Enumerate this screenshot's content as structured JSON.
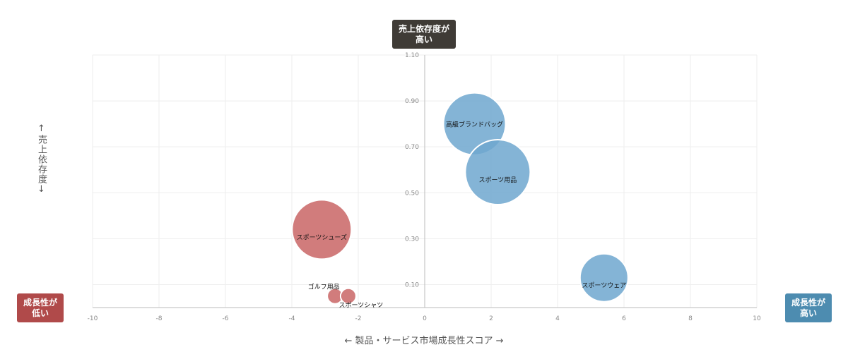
{
  "labels": {
    "top": [
      "売上依存度が",
      "高い"
    ],
    "left": [
      "成長性が",
      "低い"
    ],
    "right": [
      "成長性が",
      "高い"
    ]
  },
  "colors": {
    "top_badge": "#3f3b36",
    "left_badge": "#b04a4a",
    "right_badge": "#4d8cb0",
    "series_red": "#c96565",
    "series_blue": "#6fa7cf"
  },
  "chart_data": {
    "type": "bubble",
    "xlabel": "← 製品・サービス市場成長性スコア →",
    "ylabel": "↑売上依存度↓",
    "xlim": [
      -10,
      10
    ],
    "ylim": [
      0,
      1.1
    ],
    "x_ticks": [
      "-10",
      "-8",
      "-6",
      "-4",
      "-2",
      "0",
      "2",
      "4",
      "6",
      "8",
      "10"
    ],
    "y_ticks": [
      "0.10",
      "0.30",
      "0.50",
      "0.70",
      "0.90",
      "1.10"
    ],
    "grid": true,
    "points": [
      {
        "label": "高級ブランドバッグ",
        "x": 1.5,
        "y": 0.8,
        "size": 44,
        "color": "blue"
      },
      {
        "label": "スポーツ用品",
        "x": 2.2,
        "y": 0.59,
        "size": 46,
        "color": "blue"
      },
      {
        "label": "スポーツウェア",
        "x": 5.4,
        "y": 0.13,
        "size": 34,
        "color": "blue"
      },
      {
        "label": "スポーツシューズ",
        "x": -3.1,
        "y": 0.34,
        "size": 42,
        "color": "red"
      },
      {
        "label": "ゴルフ用品",
        "x": -2.7,
        "y": 0.05,
        "size": 11,
        "color": "red"
      },
      {
        "label": "スポーツシャツ",
        "x": -2.3,
        "y": 0.05,
        "size": 11,
        "color": "red"
      }
    ]
  }
}
